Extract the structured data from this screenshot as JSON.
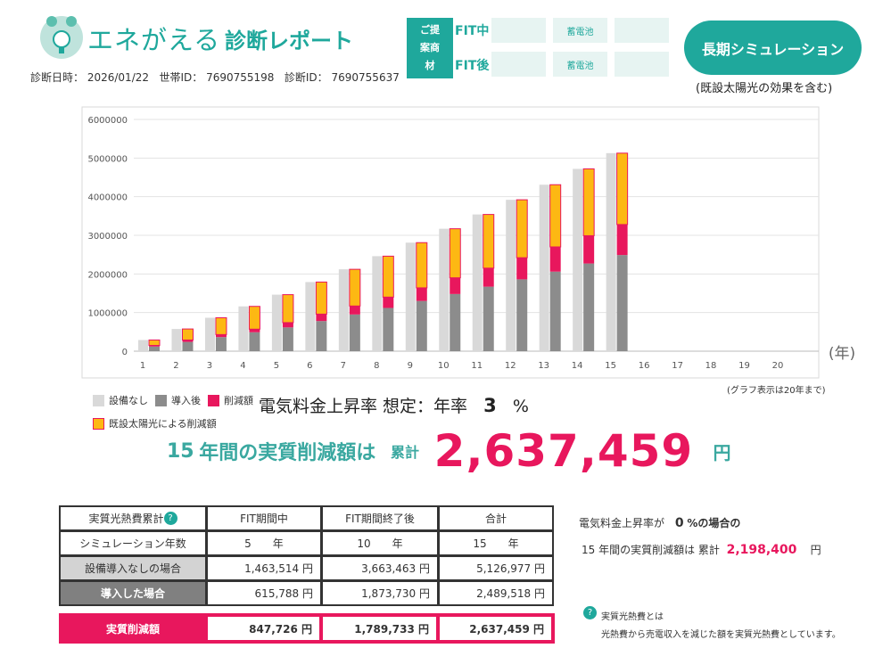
{
  "header": {
    "logo_text": "エネがえる",
    "title": "診断レポート",
    "date_label": "診断日時：",
    "date": "2026/01/22",
    "household_label": "世帯ID：",
    "household_id": "7690755198",
    "diagnosis_label": "診断ID：",
    "diagnosis_id": "7690755637"
  },
  "proposal": {
    "label": "ご提案商材",
    "rows": [
      {
        "name": "FIT中",
        "item": "蓄電池"
      },
      {
        "name": "FIT後",
        "item": "蓄電池"
      }
    ]
  },
  "button": {
    "label": "長期シミュレーション",
    "note": "(既設太陽光の効果を含む)"
  },
  "chart_data": {
    "type": "bar",
    "categories": [
      "1",
      "2",
      "3",
      "4",
      "5",
      "6",
      "7",
      "8",
      "9",
      "10",
      "11",
      "12",
      "13",
      "14",
      "15",
      "16",
      "17",
      "18",
      "19",
      "20"
    ],
    "series": [
      {
        "name": "設備なし",
        "color": "#d9d9d9",
        "values": [
          290000,
          575000,
          865000,
          1160000,
          1463514,
          1790000,
          2120000,
          2460000,
          2810000,
          3170000,
          3540000,
          3920000,
          4310000,
          4720000,
          5126977,
          null,
          null,
          null,
          null,
          null
        ]
      },
      {
        "name": "導入後",
        "color": "#8c8c8c",
        "values": [
          120000,
          240000,
          365000,
          490000,
          615788,
          780000,
          950000,
          1120000,
          1300000,
          1480000,
          1670000,
          1860000,
          2060000,
          2270000,
          2489518,
          null,
          null,
          null,
          null,
          null
        ]
      },
      {
        "name": "削減額",
        "color": "#e8175d",
        "values": [
          30000,
          50000,
          65000,
          80000,
          124000,
          180000,
          220000,
          280000,
          340000,
          420000,
          480000,
          560000,
          640000,
          720000,
          790000,
          null,
          null,
          null,
          null,
          null
        ]
      },
      {
        "name": "既設太陽光による削減額",
        "color": "#fdb813",
        "values": [
          140000,
          285000,
          435000,
          590000,
          723726,
          830000,
          950000,
          1060000,
          1170000,
          1270000,
          1390000,
          1500000,
          1610000,
          1730000,
          1847459,
          null,
          null,
          null,
          null,
          null
        ]
      }
    ],
    "ylim": [
      0,
      6000000
    ],
    "yticks": [
      0,
      1000000,
      2000000,
      3000000,
      4000000,
      5000000,
      6000000
    ],
    "grid": true,
    "x_label": "(年)",
    "note": "(グラフ表示は20年まで)"
  },
  "rate": {
    "label": "電気料金上昇率 想定：年率",
    "value": "3",
    "unit": "%"
  },
  "headline": {
    "years": "15",
    "text": "年間の実質削減額は",
    "cumulative": "累計",
    "amount": "2,637,459",
    "unit": "円"
  },
  "table": {
    "help_icon": "?",
    "header": [
      "実質光熱費累計",
      "FIT期間中",
      "FIT期間終了後",
      "合計"
    ],
    "rows": [
      [
        "シミュレーション年数",
        "5　　年",
        "10　　年",
        "15　　年"
      ],
      [
        "設備導入なしの場合",
        "1,463,514 円",
        "3,663,463 円",
        "5,126,977 円"
      ],
      [
        "導入した場合",
        "615,788 円",
        "1,873,730 円",
        "2,489,518 円"
      ]
    ],
    "total": [
      "実質削減額",
      "847,726 円",
      "1,789,733 円",
      "2,637,459 円"
    ]
  },
  "alt": {
    "prefix": "電気料金上昇率が",
    "rate": "0",
    "suffix": "%の場合の",
    "years": "15",
    "text": "年間の実質削減額は 累計",
    "amount": "2,198,400",
    "unit": "円"
  },
  "note": {
    "icon": "?",
    "title": "実質光熱費とは",
    "text": "光熱費から売電収入を減じた額を実質光熱費としています。"
  }
}
